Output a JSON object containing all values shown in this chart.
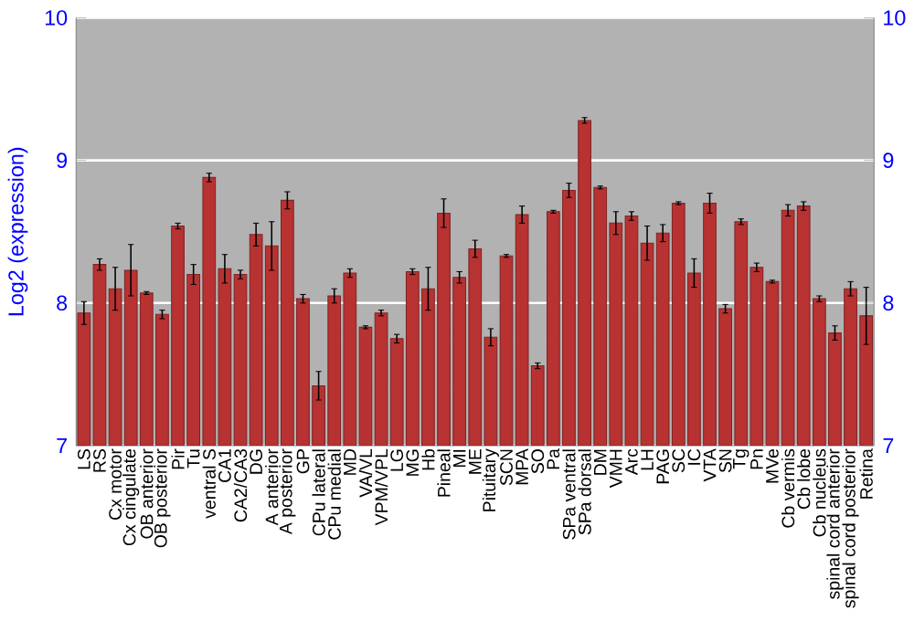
{
  "chart_data": {
    "type": "bar",
    "ylabel": "Log2 (expression)",
    "categories": [
      "LS",
      "RS",
      "Cx motor",
      "Cx cingulate",
      "OB anterior",
      "OB posterior",
      "Pir",
      "Tu",
      "ventral S",
      "CA1",
      "CA2/CA3",
      "DG",
      "A anterior",
      "A posterior",
      "GP",
      "CPu lateral",
      "CPu medial",
      "MD",
      "VA/VL",
      "VPM/VPL",
      "LG",
      "MG",
      "Hb",
      "Pineal",
      "MI",
      "ME",
      "Pituitary",
      "SCN",
      "MPA",
      "SO",
      "Pa",
      "SPa ventral",
      "SPa dorsal",
      "DM",
      "VMH",
      "Arc",
      "LH",
      "PAG",
      "SC",
      "IC",
      "VTA",
      "SN",
      "Tg",
      "Pn",
      "MVe",
      "Cb vermis",
      "Cb lobe",
      "Cb nucleus",
      "spinal cord anterior",
      "spinal cord posterior",
      "Retina"
    ],
    "values": [
      7.93,
      8.27,
      8.1,
      8.23,
      8.07,
      7.92,
      8.54,
      8.2,
      8.88,
      8.24,
      8.2,
      8.48,
      8.4,
      8.72,
      8.03,
      7.42,
      8.05,
      8.21,
      7.83,
      7.93,
      7.75,
      8.22,
      8.1,
      8.63,
      8.18,
      8.38,
      7.76,
      8.33,
      8.62,
      7.56,
      8.64,
      8.79,
      9.28,
      8.81,
      8.56,
      8.61,
      8.42,
      8.49,
      8.7,
      8.21,
      8.7,
      7.96,
      8.57,
      8.25,
      8.15,
      8.65,
      8.68,
      8.03,
      7.79,
      8.1,
      7.91
    ],
    "errors": [
      0.08,
      0.04,
      0.15,
      0.18,
      0.01,
      0.03,
      0.02,
      0.07,
      0.03,
      0.1,
      0.03,
      0.08,
      0.17,
      0.06,
      0.03,
      0.1,
      0.05,
      0.03,
      0.01,
      0.02,
      0.03,
      0.02,
      0.15,
      0.1,
      0.04,
      0.06,
      0.06,
      0.01,
      0.06,
      0.02,
      0.01,
      0.05,
      0.02,
      0.01,
      0.08,
      0.03,
      0.12,
      0.06,
      0.01,
      0.1,
      0.07,
      0.03,
      0.02,
      0.03,
      0.01,
      0.04,
      0.03,
      0.02,
      0.05,
      0.05,
      0.2
    ],
    "color": "#b83232",
    "ylim": [
      7,
      10
    ],
    "yticks": [
      7,
      8,
      9,
      10
    ],
    "y2lim": [
      7,
      10
    ],
    "y2ticks": [
      7,
      8,
      9,
      10
    ],
    "grid": "y"
  }
}
